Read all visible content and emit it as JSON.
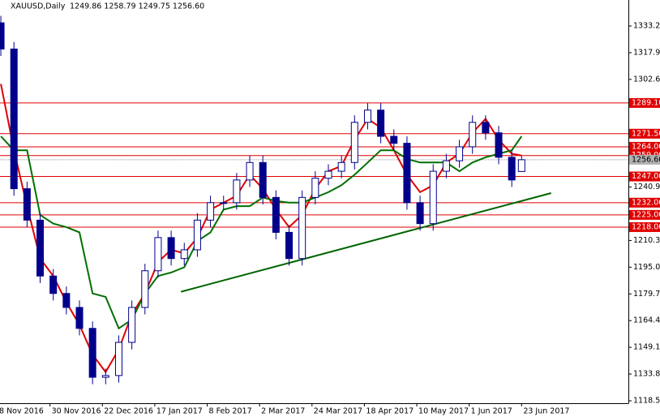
{
  "chart_data": {
    "type": "candlestick",
    "header": {
      "symbol": "XAUUSD,Daily",
      "quote": "1249.86 1258.79 1249.75 1256.60"
    },
    "x": [
      1,
      5,
      9,
      13,
      17,
      21,
      25,
      29,
      33,
      37,
      41,
      45,
      49,
      53,
      57,
      61,
      65,
      69,
      73,
      77,
      81,
      85,
      89,
      93,
      97,
      101,
      105,
      109,
      113,
      117,
      121,
      125,
      129,
      133,
      137,
      141,
      145,
      149,
      153,
      157,
      160
    ],
    "open": [
      1335,
      1320,
      1240,
      1222,
      1190,
      1180,
      1172,
      1160,
      1132,
      1133,
      1152,
      1172,
      1193,
      1212,
      1200,
      1205,
      1222,
      1232,
      1232,
      1245,
      1255,
      1235,
      1215,
      1200,
      1235,
      1246,
      1250,
      1255,
      1278,
      1285,
      1270,
      1266,
      1232,
      1220,
      1250,
      1256,
      1264,
      1278,
      1272,
      1258,
      1249.86
    ],
    "high": [
      1339,
      1324,
      1244,
      1226,
      1194,
      1184,
      1176,
      1164,
      1137,
      1156,
      1176,
      1197,
      1216,
      1216,
      1209,
      1226,
      1236,
      1236,
      1249,
      1259,
      1259,
      1239,
      1219,
      1239,
      1250,
      1254,
      1259,
      1282,
      1289,
      1289,
      1274,
      1270,
      1236,
      1254,
      1260,
      1268,
      1282,
      1282,
      1276,
      1262,
      1258.79
    ],
    "low": [
      1316,
      1236,
      1218,
      1186,
      1176,
      1168,
      1156,
      1128,
      1128,
      1129,
      1148,
      1168,
      1189,
      1196,
      1196,
      1201,
      1218,
      1228,
      1228,
      1241,
      1231,
      1211,
      1196,
      1196,
      1231,
      1242,
      1246,
      1251,
      1274,
      1266,
      1262,
      1228,
      1216,
      1216,
      1246,
      1252,
      1260,
      1268,
      1254,
      1241,
      1249.75
    ],
    "close": [
      1320,
      1240,
      1222,
      1190,
      1180,
      1172,
      1160,
      1132,
      1133,
      1152,
      1172,
      1193,
      1212,
      1200,
      1205,
      1222,
      1232,
      1232,
      1245,
      1255,
      1235,
      1215,
      1200,
      1235,
      1246,
      1250,
      1255,
      1278,
      1285,
      1270,
      1266,
      1232,
      1220,
      1250,
      1256,
      1264,
      1278,
      1272,
      1258,
      1245,
      1256.6
    ],
    "color_up": "#ffffff",
    "color_down": "#00008b",
    "series": [
      {
        "color": "#e00000",
        "values": [
          1300,
          1262,
          1230,
          1200,
          1190,
          1175,
          1162,
          1145,
          1135,
          1148,
          1168,
          1180,
          1198,
          1205,
          1203,
          1212,
          1228,
          1232,
          1236,
          1248,
          1240,
          1228,
          1218,
          1225,
          1240,
          1250,
          1253,
          1268,
          1280,
          1275,
          1262,
          1248,
          1238,
          1242,
          1255,
          1260,
          1272,
          1280,
          1268,
          1260,
          1259
        ]
      },
      {
        "color": "#007000",
        "values": [
          1270,
          1262,
          1262,
          1225,
          1220,
          1218,
          1215,
          1180,
          1178,
          1160,
          1165,
          1180,
          1190,
          1192,
          1195,
          1210,
          1215,
          1228,
          1230,
          1230,
          1235,
          1233,
          1232,
          1232,
          1235,
          1238,
          1242,
          1248,
          1255,
          1262,
          1262,
          1257,
          1255,
          1255,
          1255,
          1250,
          1255,
          1258,
          1260,
          1262,
          1270
        ]
      }
    ],
    "trendline": {
      "x": [
        56,
        169
      ],
      "values": [
        1181,
        1237.5
      ],
      "color": "#006400"
    },
    "levels": [
      {
        "value": 1289.1,
        "label": "1289.10"
      },
      {
        "value": 1271.5,
        "label": "1271.50"
      },
      {
        "value": 1264,
        "label": "1264.00"
      },
      {
        "value": 1259,
        "label": "1259.00"
      },
      {
        "value": 1247,
        "label": "1247.00"
      },
      {
        "value": 1232,
        "label": "1232.00"
      },
      {
        "value": 1225,
        "label": "1225.00"
      },
      {
        "value": 1218,
        "label": "1218.00"
      }
    ],
    "levels_color": "#e00000",
    "last_price": {
      "value": 1256.6,
      "label": "1256.60"
    },
    "xlim": [
      0.74,
      192.6
    ],
    "ylim": [
      1117.15,
      1348.07
    ],
    "xticks": [
      {
        "value": 0,
        "label": "8 Nov 2016"
      },
      {
        "value": 16,
        "label": "30 Nov 2016"
      },
      {
        "value": 32,
        "label": "22 Dec 2016"
      },
      {
        "value": 48,
        "label": "17 Jan 2017"
      },
      {
        "value": 64,
        "label": "8 Feb 2017"
      },
      {
        "value": 80,
        "label": "2 Mar 2017"
      },
      {
        "value": 96,
        "label": "24 Mar 2017"
      },
      {
        "value": 112,
        "label": "18 Apr 2017"
      },
      {
        "value": 128,
        "label": "10 May 2017"
      },
      {
        "value": 144,
        "label": "1 Jun 2017"
      },
      {
        "value": 160,
        "label": "23 Jun 2017"
      }
    ],
    "yticks": [
      {
        "value": 1333.2,
        "label": "1333.20"
      },
      {
        "value": 1317.9,
        "label": "1317.90"
      },
      {
        "value": 1302.6,
        "label": "1302.60"
      },
      {
        "value": 1240.95,
        "label": "1240.95"
      },
      {
        "value": 1210.35,
        "label": "1210.35"
      },
      {
        "value": 1195.05,
        "label": "1195.05"
      },
      {
        "value": 1179.75,
        "label": "1179.75"
      },
      {
        "value": 1164.45,
        "label": "1164.45"
      },
      {
        "value": 1149.15,
        "label": "1149.15"
      },
      {
        "value": 1133.85,
        "label": "1133.85"
      },
      {
        "value": 1118.55,
        "label": "1118.55"
      }
    ]
  }
}
